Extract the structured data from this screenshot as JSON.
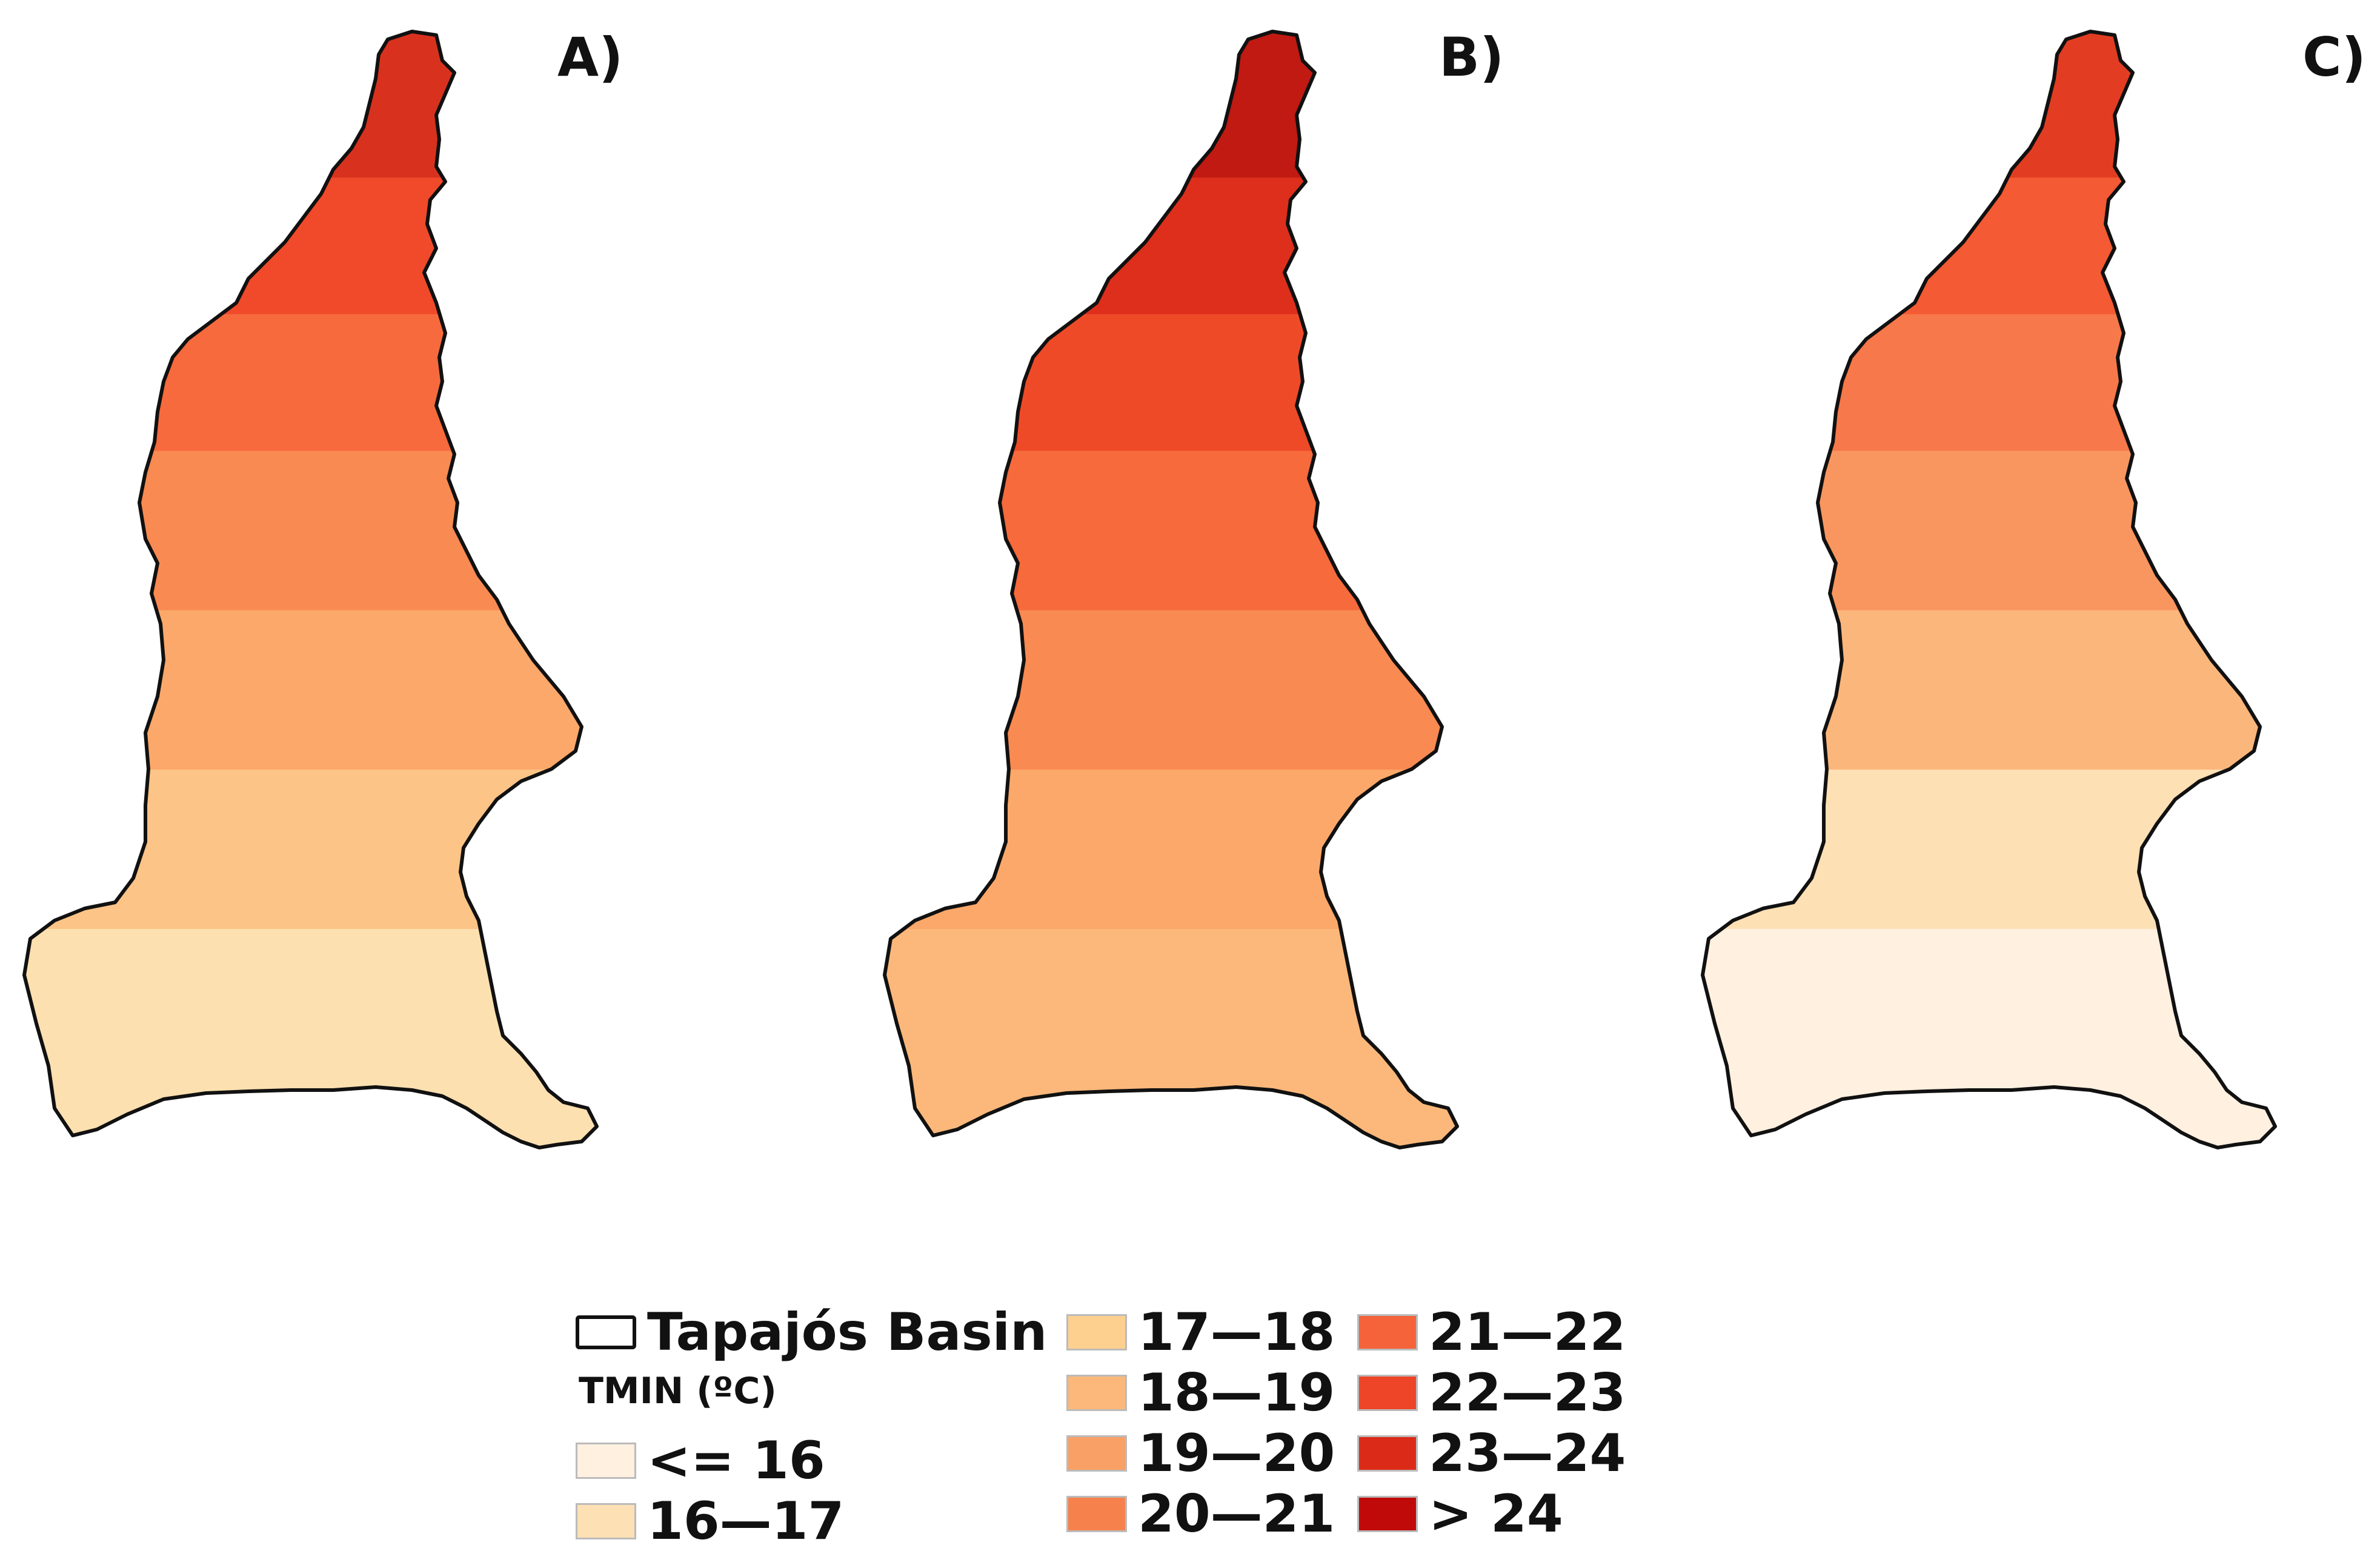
{
  "panels": [
    {
      "label": "A)",
      "bands": [
        {
          "color": "#d8321f"
        },
        {
          "color": "#f04a2a"
        },
        {
          "color": "#f76a3d"
        },
        {
          "color": "#f98a52"
        },
        {
          "color": "#fba86a"
        },
        {
          "color": "#fcc487"
        },
        {
          "color": "#fde0b0"
        }
      ]
    },
    {
      "label": "B)",
      "bands": [
        {
          "color": "#c01a12"
        },
        {
          "color": "#dd2f1c"
        },
        {
          "color": "#ef4a28"
        },
        {
          "color": "#f66a3c"
        },
        {
          "color": "#f98a52"
        },
        {
          "color": "#fba86a"
        },
        {
          "color": "#fbb87a"
        }
      ]
    },
    {
      "label": "C)",
      "bands": [
        {
          "color": "#e23d22"
        },
        {
          "color": "#f45a33"
        },
        {
          "color": "#f7784a"
        },
        {
          "color": "#f99660"
        },
        {
          "color": "#fbb67c"
        },
        {
          "color": "#fde0b4"
        },
        {
          "color": "#fff0e0"
        }
      ]
    }
  ],
  "legend": {
    "basin_label": "Tapajós Basin",
    "title": "TMIN (ºC)",
    "classes": [
      {
        "label": "<= 16",
        "color": "#fff0e0"
      },
      {
        "label": "16—17",
        "color": "#fde0b4"
      },
      {
        "label": "17—18",
        "color": "#fdd090"
      },
      {
        "label": "18—19",
        "color": "#fbb87a"
      },
      {
        "label": "19—20",
        "color": "#f9a066"
      },
      {
        "label": "20—21",
        "color": "#f7814d"
      },
      {
        "label": "21—22",
        "color": "#f4633a"
      },
      {
        "label": "22—23",
        "color": "#ee4428"
      },
      {
        "label": "23—24",
        "color": "#dc2a19"
      },
      {
        "label": "> 24",
        "color": "#c00a0a"
      }
    ]
  }
}
